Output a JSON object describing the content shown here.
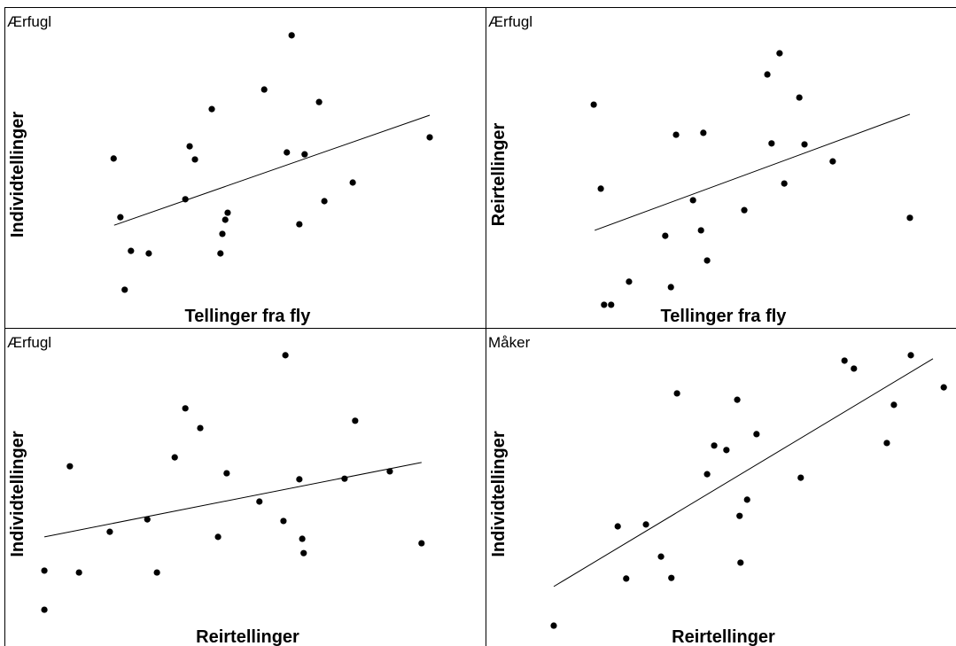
{
  "chart_data": [
    {
      "type": "scatter",
      "title": "Ærfugl",
      "xlabel": "Tellinger fra fly",
      "ylabel": "Individtellinger",
      "color": "#000000",
      "xlim": [
        0,
        100
      ],
      "ylim": [
        0,
        100
      ],
      "x": [
        59.7,
        54.0,
        65.4,
        43.1,
        88.4,
        38.5,
        22.7,
        39.6,
        58.7,
        62.4,
        72.4,
        37.6,
        66.5,
        24.1,
        46.4,
        45.9,
        61.3,
        45.3,
        26.3,
        30.0,
        44.9,
        25.0
      ],
      "values": [
        91.2,
        74.3,
        70.4,
        68.2,
        59.4,
        56.6,
        52.8,
        52.5,
        54.7,
        54.1,
        45.3,
        40.1,
        39.5,
        34.5,
        35.9,
        33.7,
        32.3,
        29.3,
        24.0,
        23.2,
        23.2,
        11.9
      ],
      "trendline": {
        "x": [
          22.8,
          88.4
        ],
        "y": [
          32.0,
          66.3
        ]
      }
    },
    {
      "type": "scatter",
      "title": "Ærfugl",
      "xlabel": "Tellinger fra fly",
      "ylabel": "Reirtellinger",
      "color": "#000000",
      "xlim": [
        0,
        100
      ],
      "ylim": [
        0,
        100
      ],
      "x": [
        62.5,
        59.9,
        23.0,
        66.7,
        40.5,
        46.3,
        60.8,
        67.8,
        73.8,
        24.5,
        63.5,
        44.1,
        55.0,
        90.2,
        38.2,
        45.8,
        47.1,
        30.5,
        39.4,
        25.2,
        26.7
      ],
      "values": [
        85.6,
        79.0,
        69.6,
        71.8,
        60.2,
        60.8,
        57.5,
        57.2,
        51.9,
        43.4,
        45.0,
        39.8,
        36.7,
        34.3,
        28.7,
        30.4,
        21.0,
        14.4,
        12.7,
        7.2,
        7.2
      ],
      "trendline": {
        "x": [
          23.2,
          90.2
        ],
        "y": [
          30.4,
          66.6
        ]
      }
    },
    {
      "type": "scatter",
      "title": "Ærfugl",
      "xlabel": "Reirtellinger",
      "ylabel": "Individtellinger",
      "color": "#000000",
      "xlim": [
        0,
        100
      ],
      "ylim": [
        0,
        100
      ],
      "x": [
        58.4,
        37.6,
        72.9,
        40.7,
        13.6,
        35.4,
        46.2,
        61.3,
        70.7,
        80.1,
        53.0,
        29.7,
        21.9,
        58.0,
        44.4,
        61.9,
        86.7,
        62.2,
        8.3,
        15.5,
        31.7,
        8.3
      ],
      "values": [
        91.4,
        74.7,
        70.8,
        68.5,
        56.5,
        59.3,
        54.3,
        52.4,
        52.6,
        54.9,
        45.4,
        39.8,
        35.9,
        39.3,
        34.3,
        33.7,
        32.3,
        29.2,
        23.7,
        23.1,
        23.1,
        11.4
      ],
      "trendline": {
        "x": [
          8.3,
          86.7
        ],
        "y": [
          34.3,
          57.7
        ]
      }
    },
    {
      "type": "scatter",
      "title": "Måker",
      "xlabel": "Reirtellinger",
      "ylabel": "Individtellinger",
      "color": "#000000",
      "xlim": [
        0,
        100
      ],
      "ylim": [
        0,
        100
      ],
      "x": [
        90.4,
        76.3,
        78.3,
        97.4,
        40.7,
        53.5,
        86.8,
        57.6,
        85.3,
        48.6,
        51.2,
        47.1,
        67.0,
        55.6,
        54.0,
        28.1,
        34.1,
        37.3,
        54.2,
        29.9,
        39.5,
        14.5
      ],
      "values": [
        91.4,
        89.7,
        87.2,
        81.3,
        79.4,
        77.4,
        75.8,
        66.6,
        63.8,
        63.0,
        61.6,
        54.0,
        52.9,
        46.0,
        40.9,
        37.6,
        38.2,
        28.1,
        26.2,
        21.2,
        21.4,
        6.4
      ],
      "trendline": {
        "x": [
          14.5,
          95.1
        ],
        "y": [
          18.7,
          90.3
        ]
      }
    }
  ]
}
